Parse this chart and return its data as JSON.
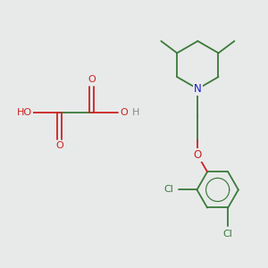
{
  "background_color": "#e8eaea",
  "bond_color": "#3a7a3a",
  "N_color": "#1a1acc",
  "O_color": "#cc2222",
  "Cl_color": "#3a7a3a",
  "H_color": "#888888",
  "bond_width": 1.3,
  "fig_width": 3.0,
  "fig_height": 3.0,
  "dpi": 100,
  "xlim": [
    0,
    10
  ],
  "ylim": [
    0,
    10
  ]
}
